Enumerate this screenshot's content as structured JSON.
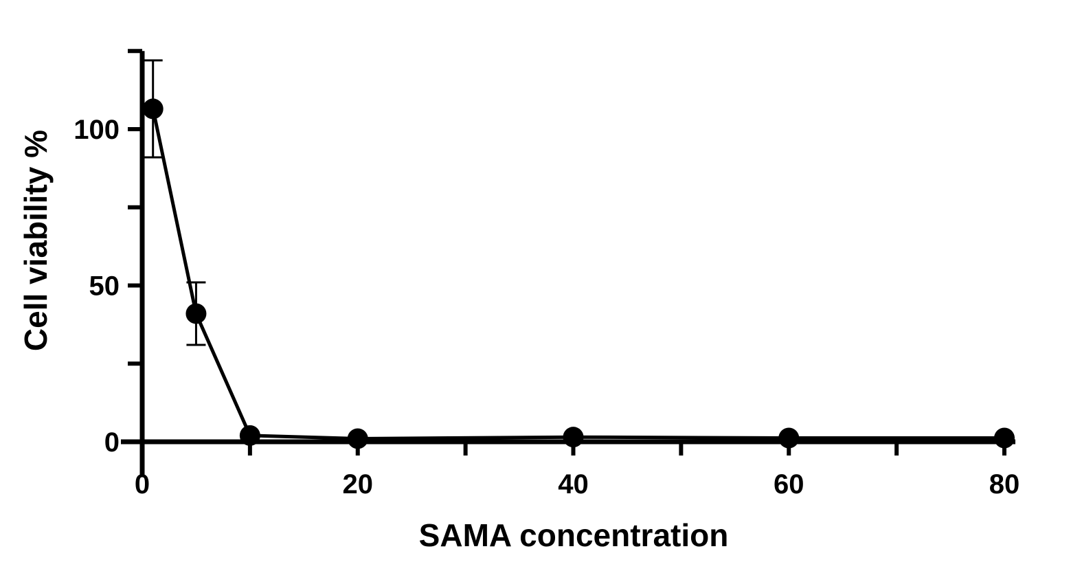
{
  "chart_data": {
    "type": "line",
    "xlabel": "SAMA concentration",
    "ylabel": "Cell viability %",
    "xlim": [
      0,
      80
    ],
    "ylim": [
      -4,
      125
    ],
    "x_ticks_major": [
      0,
      20,
      40,
      60,
      80
    ],
    "x_ticks_minor": [
      10,
      30,
      50,
      70
    ],
    "y_ticks_major": [
      0,
      50,
      100
    ],
    "y_ticks_minor": [
      25,
      75,
      125
    ],
    "grid": false,
    "legend": "none",
    "color": "#000000",
    "series": [
      {
        "x": [
          1,
          5,
          10,
          20,
          40,
          60,
          80
        ],
        "y": [
          106.5,
          41,
          2,
          1,
          1.5,
          1.2,
          1.2
        ],
        "error": [
          15.5,
          10,
          0,
          0,
          0,
          0,
          0
        ]
      }
    ]
  }
}
